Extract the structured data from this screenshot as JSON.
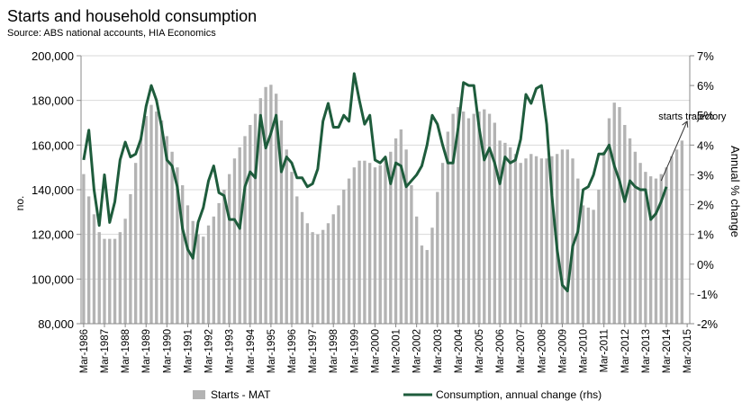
{
  "chart_data": {
    "type": "bar+line",
    "title": "Starts and household consumption",
    "subtitle": "Source: ABS national accounts, HIA Economics",
    "ylabel_left": "no.",
    "ylabel_right": "Annual % change",
    "ylim_left": [
      80000,
      200000
    ],
    "ylim_right": [
      -2,
      7
    ],
    "yticks_left": [
      "80,000",
      "100,000",
      "120,000",
      "140,000",
      "160,000",
      "180,000",
      "200,000"
    ],
    "yticks_right": [
      "-2%",
      "-1%",
      "0%",
      "1%",
      "2%",
      "3%",
      "4%",
      "5%",
      "6%",
      "7%"
    ],
    "grid": "horizontal",
    "x_start": "Mar-1986",
    "xticks": [
      "Mar-1986",
      "Mar-1987",
      "Mar-1988",
      "Mar-1989",
      "Mar-1990",
      "Mar-1991",
      "Mar-1992",
      "Mar-1993",
      "Mar-1994",
      "Mar-1995",
      "Mar-1996",
      "Mar-1997",
      "Mar-1998",
      "Mar-1999",
      "Mar-2000",
      "Mar-2001",
      "Mar-2002",
      "Mar-2003",
      "Mar-2004",
      "Mar-2005",
      "Mar-2006",
      "Mar-2007",
      "Mar-2008",
      "Mar-2009",
      "Mar-2010",
      "Mar-2011",
      "Mar-2012",
      "Mar-2013",
      "Mar-2014",
      "Mar-2015"
    ],
    "series": [
      {
        "name": "Starts - MAT",
        "axis": "left",
        "type": "bar",
        "color": "#b3b3b3",
        "values": [
          147000,
          137000,
          129000,
          121000,
          118000,
          118000,
          118000,
          121000,
          127000,
          138000,
          152000,
          163000,
          173000,
          178000,
          175000,
          171000,
          164000,
          157000,
          150000,
          142000,
          133000,
          126000,
          120000,
          119000,
          124000,
          128000,
          134000,
          140000,
          147000,
          154000,
          159000,
          164000,
          169000,
          174000,
          181000,
          186000,
          187000,
          183000,
          171000,
          158000,
          148000,
          137000,
          130000,
          125000,
          121000,
          120000,
          122000,
          125000,
          129000,
          133000,
          140000,
          145000,
          150000,
          153000,
          153000,
          152000,
          150000,
          151000,
          153000,
          157000,
          163000,
          167000,
          158000,
          142000,
          128000,
          115000,
          113000,
          123000,
          139000,
          152000,
          166000,
          174000,
          177000,
          175000,
          172000,
          174000,
          175000,
          176000,
          174000,
          170000,
          162000,
          161000,
          159000,
          156000,
          152000,
          154000,
          156000,
          155000,
          154000,
          154000,
          155000,
          156000,
          158000,
          158000,
          154000,
          145000,
          133000,
          132000,
          131000,
          140000,
          157000,
          172000,
          179000,
          177000,
          169000,
          163000,
          157000,
          152000,
          148000,
          146000,
          145000,
          147000,
          150000,
          155000,
          158000,
          162000
        ]
      },
      {
        "name": "Consumption, annual change (rhs)",
        "axis": "right",
        "type": "line",
        "color": "#1e5c3c",
        "values": [
          3.5,
          4.5,
          2.5,
          1.3,
          3.0,
          1.4,
          2.1,
          3.5,
          4.1,
          3.6,
          3.7,
          4.2,
          5.3,
          6.0,
          5.5,
          4.6,
          3.5,
          3.3,
          2.6,
          1.2,
          0.5,
          0.2,
          1.4,
          1.9,
          2.8,
          3.3,
          2.4,
          2.3,
          1.5,
          1.5,
          1.2,
          2.6,
          3.1,
          2.9,
          5.0,
          3.9,
          4.4,
          5.0,
          3.1,
          3.6,
          3.4,
          2.9,
          2.9,
          2.6,
          2.7,
          3.2,
          4.8,
          5.4,
          4.6,
          4.6,
          5.0,
          4.8,
          6.4,
          5.5,
          4.7,
          5.0,
          3.5,
          3.4,
          3.6,
          2.7,
          3.4,
          3.3,
          2.6,
          2.8,
          3.0,
          3.3,
          4.0,
          5.0,
          4.7,
          4.0,
          3.4,
          3.4,
          4.6,
          6.1,
          6.0,
          6.0,
          4.6,
          3.5,
          3.9,
          3.4,
          2.7,
          3.6,
          3.4,
          3.5,
          4.2,
          5.7,
          5.4,
          5.9,
          6.0,
          4.7,
          2.3,
          0.5,
          -0.7,
          -0.9,
          0.6,
          1.1,
          2.5,
          2.6,
          3.0,
          3.7,
          3.7,
          4.0,
          3.3,
          2.8,
          2.1,
          2.8,
          2.6,
          2.5,
          2.5,
          1.5,
          1.7,
          2.1,
          2.6
        ]
      }
    ],
    "annotations": [
      {
        "text": "starts trajectory",
        "from": {
          "x": 111,
          "y": 2.8
        },
        "to": {
          "x": 116,
          "y": 4.8
        }
      }
    ],
    "legend": {
      "placement": "bottom"
    }
  }
}
